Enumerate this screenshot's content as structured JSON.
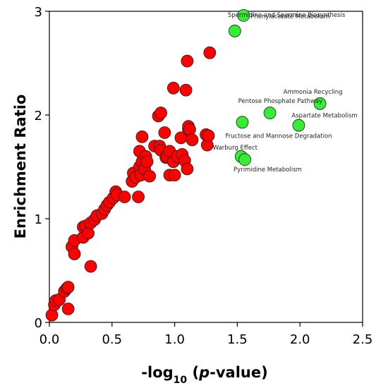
{
  "chart_data": {
    "type": "scatter",
    "title": "",
    "xlabel": "-log10 (p-value)",
    "xlabel_parts": {
      "prefix": "-log",
      "sub": "10",
      "open": " (",
      "italic": "p",
      "suffix": "-value)"
    },
    "ylabel": "Enrichment Ratio",
    "xlim": [
      0,
      2.5
    ],
    "ylim": [
      0,
      3
    ],
    "xticks": [
      0.0,
      0.5,
      1.0,
      1.5,
      2.0,
      2.5
    ],
    "xtick_labels": [
      "0.0",
      "0.5",
      "1.0",
      "1.5",
      "2.0",
      "2.5"
    ],
    "yticks": [
      0,
      1,
      2,
      3
    ],
    "ytick_labels": [
      "0",
      "1",
      "2",
      "3"
    ],
    "grid": false,
    "legend": "none",
    "series": [
      {
        "color": "#ff0000",
        "points": [
          [
            0.02,
            0.07
          ],
          [
            0.04,
            0.17
          ],
          [
            0.05,
            0.21
          ],
          [
            0.08,
            0.22
          ],
          [
            0.12,
            0.3
          ],
          [
            0.14,
            0.33
          ],
          [
            0.15,
            0.34
          ],
          [
            0.15,
            0.13
          ],
          [
            0.18,
            0.73
          ],
          [
            0.2,
            0.79
          ],
          [
            0.2,
            0.66
          ],
          [
            0.27,
            0.82
          ],
          [
            0.27,
            0.92
          ],
          [
            0.29,
            0.93
          ],
          [
            0.31,
            0.86
          ],
          [
            0.33,
            0.54
          ],
          [
            0.33,
            0.96
          ],
          [
            0.36,
            0.99
          ],
          [
            0.38,
            1.03
          ],
          [
            0.42,
            1.05
          ],
          [
            0.44,
            1.09
          ],
          [
            0.46,
            1.13
          ],
          [
            0.48,
            1.16
          ],
          [
            0.51,
            1.2
          ],
          [
            0.53,
            1.26
          ],
          [
            0.54,
            1.23
          ],
          [
            0.6,
            1.21
          ],
          [
            0.66,
            1.36
          ],
          [
            0.67,
            1.44
          ],
          [
            0.69,
            1.4
          ],
          [
            0.71,
            1.21
          ],
          [
            0.72,
            1.5
          ],
          [
            0.72,
            1.65
          ],
          [
            0.73,
            1.42
          ],
          [
            0.74,
            1.55
          ],
          [
            0.74,
            1.79
          ],
          [
            0.76,
            1.48
          ],
          [
            0.77,
            1.6
          ],
          [
            0.78,
            1.55
          ],
          [
            0.8,
            1.41
          ],
          [
            0.84,
            1.7
          ],
          [
            0.87,
            1.99
          ],
          [
            0.88,
            1.7
          ],
          [
            0.89,
            1.66
          ],
          [
            0.89,
            2.02
          ],
          [
            0.92,
            1.83
          ],
          [
            0.93,
            1.59
          ],
          [
            0.94,
            1.6
          ],
          [
            0.96,
            1.42
          ],
          [
            0.96,
            1.65
          ],
          [
            0.99,
            1.55
          ],
          [
            1.0,
            1.42
          ],
          [
            1.02,
            1.6
          ],
          [
            1.05,
            1.78
          ],
          [
            1.06,
            1.62
          ],
          [
            1.08,
            1.56
          ],
          [
            1.1,
            1.48
          ],
          [
            1.11,
            1.86
          ],
          [
            1.11,
            1.89
          ],
          [
            1.12,
            1.86
          ],
          [
            1.14,
            1.76
          ],
          [
            1.25,
            1.81
          ],
          [
            1.26,
            1.71
          ],
          [
            1.27,
            1.8
          ],
          [
            0.99,
            2.26
          ],
          [
            1.09,
            2.24
          ],
          [
            1.1,
            2.52
          ],
          [
            1.28,
            2.6
          ]
        ]
      },
      {
        "color": "#33ee33",
        "points": [
          [
            1.48,
            2.81
          ],
          [
            1.55,
            2.96
          ],
          [
            1.54,
            1.93
          ],
          [
            1.76,
            2.02
          ],
          [
            1.99,
            1.9
          ],
          [
            2.16,
            2.11
          ],
          [
            1.53,
            1.6
          ],
          [
            1.56,
            1.57
          ]
        ]
      }
    ],
    "annotations": [
      {
        "text": "Phenylacetate Metabolism",
        "x": 1.55,
        "y": 2.96
      },
      {
        "text": "Spermidine and Spermine Biosynthesis",
        "x": 1.48,
        "y": 2.81
      },
      {
        "text": "Ammonia Recycling",
        "x": 2.16,
        "y": 2.11
      },
      {
        "text": "Pentose Phosphate Pathway",
        "x": 1.76,
        "y": 2.02
      },
      {
        "text": "Aspartate Metabolism",
        "x": 1.99,
        "y": 1.9
      },
      {
        "text": "Fructose and Mannose Degradation",
        "x": 1.54,
        "y": 1.93
      },
      {
        "text": "Warburg Effect",
        "x": 1.53,
        "y": 1.6
      },
      {
        "text": "Pyrimidine Metabolism",
        "x": 1.56,
        "y": 1.57
      }
    ]
  }
}
